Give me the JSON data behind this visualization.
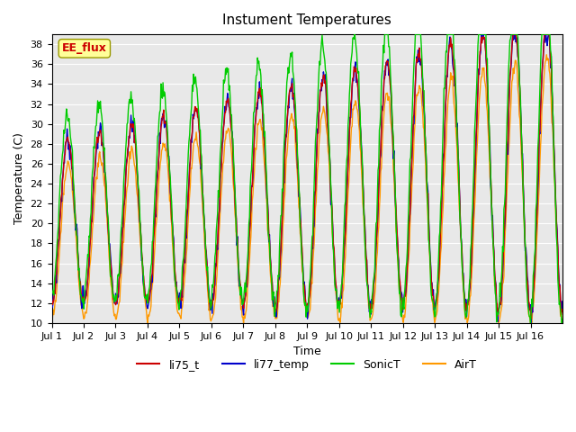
{
  "title": "Instument Temperatures",
  "xlabel": "Time",
  "ylabel": "Temperature (C)",
  "ylim": [
    10,
    39
  ],
  "yticks": [
    10,
    12,
    14,
    16,
    18,
    20,
    22,
    24,
    26,
    28,
    30,
    32,
    34,
    36,
    38
  ],
  "xtick_labels": [
    "Jul 1",
    "Jul 2",
    "Jul 3",
    "Jul 4",
    "Jul 5",
    "Jul 6",
    "Jul 7",
    "Jul 8",
    "Jul 9",
    "Jul 10",
    "Jul 11",
    "Jul 12",
    "Jul 13",
    "Jul 14",
    "Jul 15",
    "Jul 16"
  ],
  "colors": {
    "li75_t": "#cc0000",
    "li77_temp": "#0000cc",
    "SonicT": "#00cc00",
    "AirT": "#ff9900"
  },
  "annotation_text": "EE_flux",
  "annotation_color": "#cc0000",
  "annotation_bg": "#ffff99",
  "bg_color": "#e8e8e8",
  "fig_bg": "#ffffff",
  "n_days": 16,
  "points_per_day": 48
}
